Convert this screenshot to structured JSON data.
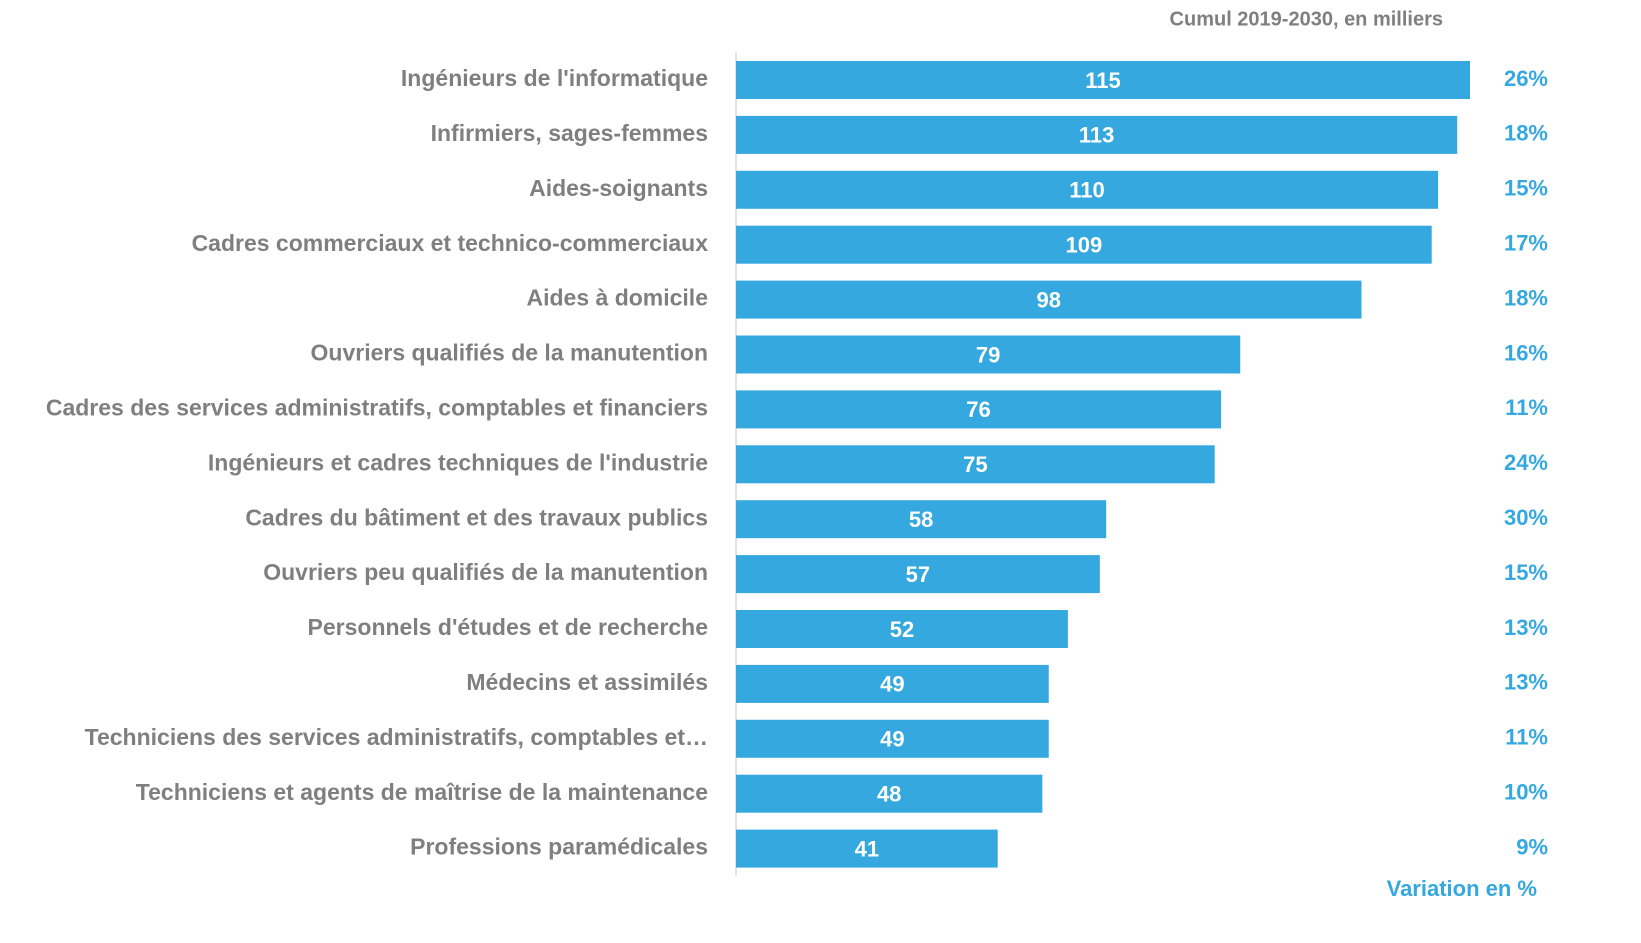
{
  "chart_data": {
    "type": "bar",
    "orientation": "horizontal",
    "subtitle": "Cumul 2019-2030, en milliers",
    "categories": [
      "Ingénieurs de l'informatique",
      "Infirmiers, sages-femmes",
      "Aides-soignants",
      "Cadres commerciaux et technico-commerciaux",
      "Aides à domicile",
      "Ouvriers qualifiés de la manutention",
      "Cadres des services administratifs, comptables et financiers",
      "Ingénieurs et cadres techniques de l'industrie",
      "Cadres du bâtiment et des travaux publics",
      "Ouvriers peu qualifiés de la manutention",
      "Personnels d'études et de recherche",
      "Médecins et assimilés",
      "Techniciens des services administratifs, comptables et…",
      "Techniciens et agents de maîtrise de la maintenance",
      "Professions paramédicales"
    ],
    "values": [
      115,
      113,
      110,
      109,
      98,
      79,
      76,
      75,
      58,
      57,
      52,
      49,
      49,
      48,
      41
    ],
    "color": "#35a8e0",
    "variation": {
      "name": "Variation en %",
      "color": "#35a8e0",
      "values": [
        26,
        18,
        15,
        17,
        18,
        16,
        11,
        24,
        30,
        15,
        13,
        13,
        11,
        10,
        9
      ],
      "value_labels": [
        "26%",
        "18%",
        "15%",
        "17%",
        "18%",
        "16%",
        "11%",
        "24%",
        "30%",
        "15%",
        "13%",
        "13%",
        "11%",
        "10%",
        "9%"
      ]
    }
  }
}
